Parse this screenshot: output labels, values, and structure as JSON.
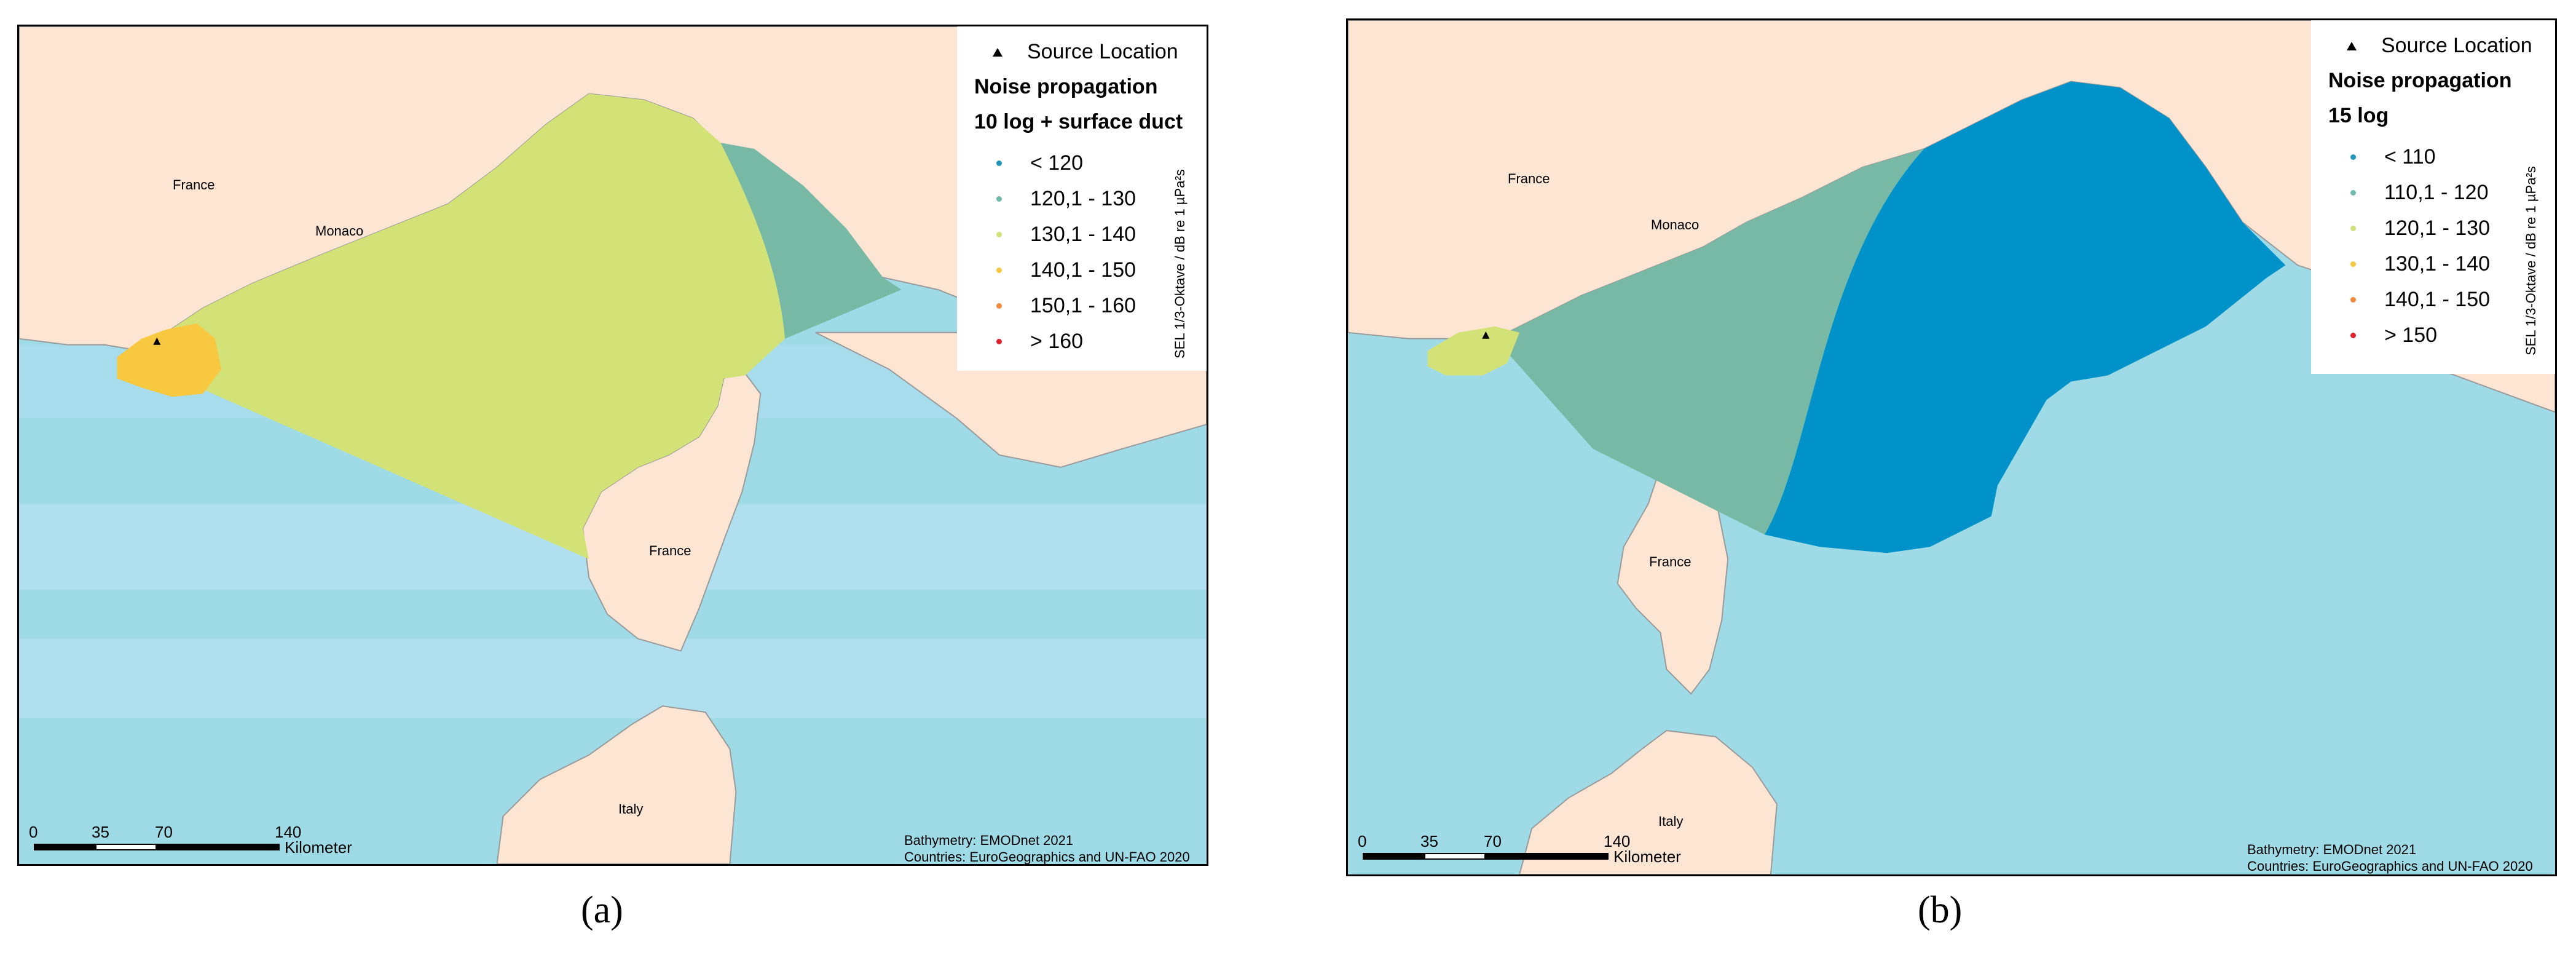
{
  "panels": [
    {
      "id": "a",
      "caption": "(a)",
      "legend": {
        "source_label": "Source Location",
        "title_line1": "Noise propagation",
        "title_line2": "10 log + surface duct",
        "axis_label": "SEL 1/3-Oktave / dB re 1 µPa²s",
        "classes": [
          {
            "label": "< 120",
            "color": "#2196b8"
          },
          {
            "label": "120,1 - 130",
            "color": "#6fb9a8"
          },
          {
            "label": "130,1 - 140",
            "color": "#cfe27a"
          },
          {
            "label": "140,1 - 150",
            "color": "#f7c742"
          },
          {
            "label": "150,1 - 160",
            "color": "#f08a3a"
          },
          {
            "label": "> 160",
            "color": "#e0202a"
          }
        ]
      },
      "places": {
        "france_nw": "France",
        "monaco": "Monaco",
        "france_corsica": "France",
        "italy": "Italy"
      },
      "scale": {
        "t0": "0",
        "t1": "35",
        "t2": "70",
        "t3": "140",
        "unit": "Kilometer"
      },
      "credits": {
        "line1": "Bathymetry: EMODnet 2021",
        "line2": "Countries: EuroGeographics and UN-FAO 2020"
      }
    },
    {
      "id": "b",
      "caption": "(b)",
      "legend": {
        "source_label": "Source Location",
        "title_line1": "Noise propagation",
        "title_line2": "15 log",
        "axis_label": "SEL 1/3-Oktave / dB re 1 µPa²s",
        "classes": [
          {
            "label": "< 110",
            "color": "#2196b8"
          },
          {
            "label": "110,1 - 120",
            "color": "#6fb9a8"
          },
          {
            "label": "120,1 - 130",
            "color": "#cfe27a"
          },
          {
            "label": "130,1 - 140",
            "color": "#f7c742"
          },
          {
            "label": "140,1 - 150",
            "color": "#f08a3a"
          },
          {
            "label": "> 150",
            "color": "#e0202a"
          }
        ]
      },
      "places": {
        "france_nw": "France",
        "monaco": "Monaco",
        "france_corsica": "France",
        "italy": "Italy"
      },
      "scale": {
        "t0": "0",
        "t1": "35",
        "t2": "70",
        "t3": "140",
        "unit": "Kilometer"
      },
      "credits": {
        "line1": "Bathymetry: EMODnet 2021",
        "line2": "Countries: EuroGeographics and UN-FAO 2020"
      }
    }
  ],
  "colors": {
    "land": "#fde5d3",
    "sea": "#9edbe6",
    "sea_band": "#b0dff0",
    "coast": "#9a9a9a",
    "zone_deep": "#0092c8",
    "zone_teal": "#78b9a6",
    "zone_green": "#d3e276",
    "zone_yellow": "#f8c840"
  }
}
